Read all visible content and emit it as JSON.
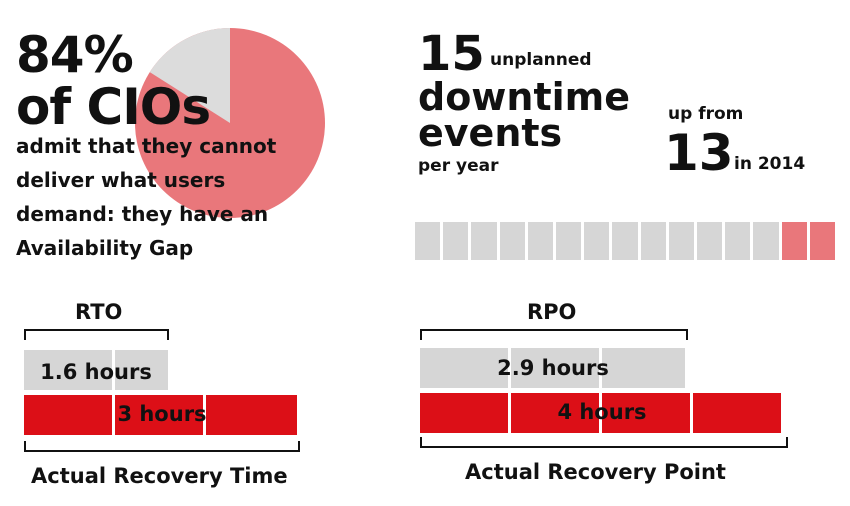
{
  "availability": {
    "percent_value": 84,
    "percent_label": "84%",
    "subject": "of CIOs",
    "description_lines": [
      "admit that they cannot",
      "deliver what users",
      "demand: they have an",
      "Availability Gap"
    ]
  },
  "downtime": {
    "count": "15",
    "word_unplanned": "unplanned",
    "word_downtime": "downtime",
    "word_events": "events",
    "per_year": "per year",
    "up_from": "up from",
    "prev_count": "13",
    "prev_year_text": "in 2014",
    "previous_events": 13,
    "current_events": 15
  },
  "rto": {
    "title": "RTO",
    "target_value": "1.6 hours",
    "actual_value": "3 hours",
    "caption": "Actual Recovery Time",
    "target_hours": 1.6,
    "actual_hours": 3
  },
  "rpo": {
    "title": "RPO",
    "target_value": "2.9 hours",
    "actual_value": "4 hours",
    "caption": "Actual Recovery Point",
    "target_hours": 2.9,
    "actual_hours": 4
  },
  "colors": {
    "gray": "#d6d6d6",
    "pink": "#e9777b",
    "red": "#dc0f17",
    "text": "#111111"
  }
}
